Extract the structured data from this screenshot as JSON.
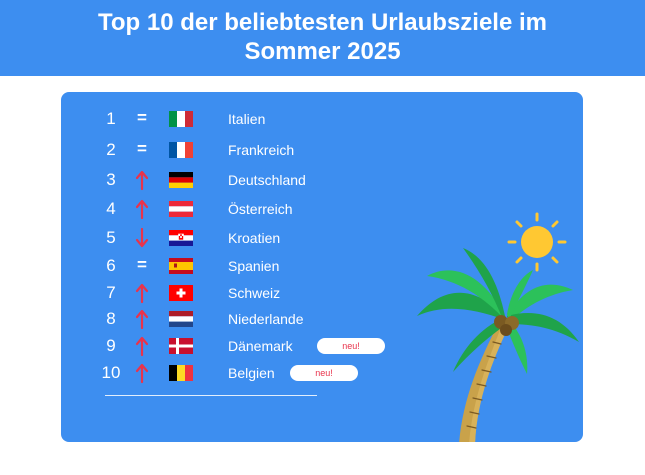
{
  "title": {
    "line1": "Top 10 der beliebtesten Urlaubsziele im",
    "line2": "Sommer 2025"
  },
  "colors": {
    "background_blue": "#3d8ef0",
    "arrow_red": "#e8344c",
    "text": "#ffffff"
  },
  "rankings": [
    {
      "rank": "1",
      "trend": "=",
      "trend_type": "same",
      "flag": "italy-flag",
      "country": "Italien"
    },
    {
      "rank": "2",
      "trend": "=",
      "trend_type": "same",
      "flag": "france-flag",
      "country": "Frankreich"
    },
    {
      "rank": "3",
      "trend": "",
      "trend_type": "up",
      "flag": "germany-flag",
      "country": "Deutschland"
    },
    {
      "rank": "4",
      "trend": "",
      "trend_type": "up",
      "flag": "austria-flag",
      "country": "Österreich"
    },
    {
      "rank": "5",
      "trend": "",
      "trend_type": "down",
      "flag": "croatia-flag",
      "country": "Kroatien"
    },
    {
      "rank": "6",
      "trend": "=",
      "trend_type": "same",
      "flag": "spain-flag",
      "country": "Spanien"
    },
    {
      "rank": "7",
      "trend": "",
      "trend_type": "up",
      "flag": "switzerland-flag",
      "country": "Schweiz"
    },
    {
      "rank": "8",
      "trend": "",
      "trend_type": "up",
      "flag": "netherlands-flag",
      "country": "Niederlande"
    },
    {
      "rank": "9",
      "trend": "",
      "trend_type": "up",
      "flag": "denmark-flag",
      "country": "Dänemark",
      "badge": "neu!"
    },
    {
      "rank": "10",
      "trend": "",
      "trend_type": "up",
      "flag": "belgium-flag",
      "country": "Belgien",
      "badge": "neu!"
    }
  ]
}
